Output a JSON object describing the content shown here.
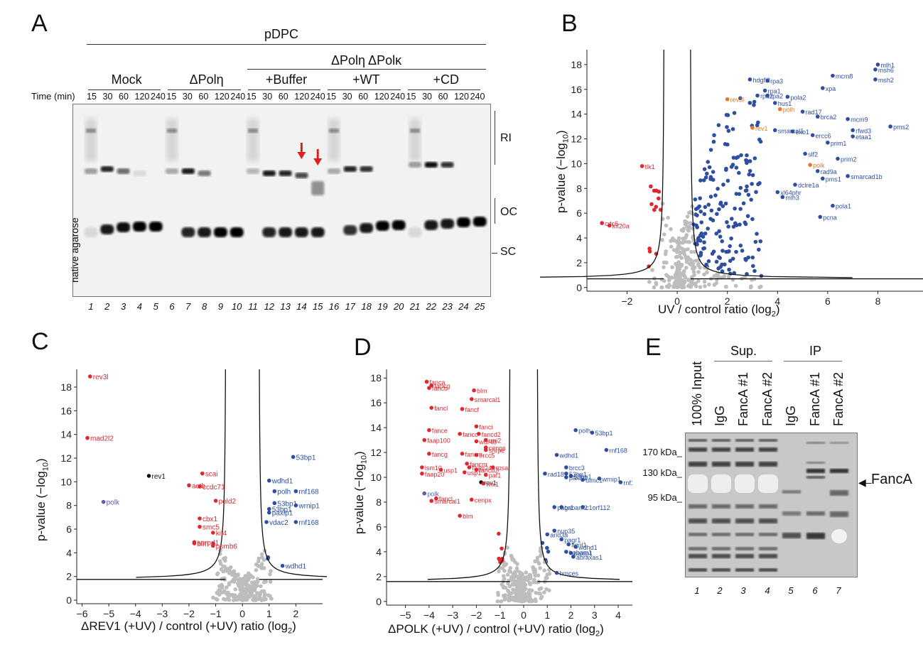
{
  "panelA": {
    "letter": "A",
    "top_header": "pDPC",
    "sub_header": "ΔPolη  ΔPolκ",
    "groups": [
      "Mock",
      "ΔPolη",
      "+Buffer",
      "+WT",
      "+CD"
    ],
    "time_label": "Time (min)",
    "times": [
      "15",
      "30",
      "60",
      "120",
      "240"
    ],
    "lanes": [
      "1",
      "2",
      "3",
      "4",
      "5",
      "6",
      "7",
      "8",
      "9",
      "10",
      "11",
      "12",
      "13",
      "14",
      "15",
      "16",
      "17",
      "18",
      "19",
      "20",
      "21",
      "22",
      "23",
      "24",
      "25"
    ],
    "side_label": "native agarose",
    "bands": [
      "RI",
      "OC",
      "SC"
    ],
    "arrow_color": "#e02020",
    "arrow_lanes": [
      "14",
      "15"
    ]
  },
  "panelB": {
    "letter": "B",
    "ylabel": "p-value (−log10)",
    "xlabel": "UV / control ratio (log2)",
    "xticks": [
      "−2",
      "0",
      "2",
      "4",
      "6",
      "8"
    ],
    "yticks": [
      "0",
      "2",
      "4",
      "6",
      "8",
      "10",
      "12",
      "14",
      "16",
      "18"
    ]
  },
  "panelC": {
    "letter": "C",
    "ylabel": "p-value (−log10)",
    "xlabel": "ΔREV1 (+UV) / control (+UV) ratio (log2)",
    "xticks": [
      "−6",
      "−5",
      "−4",
      "−3",
      "−2",
      "−1",
      "0",
      "1",
      "2"
    ],
    "yticks": [
      "0",
      "2",
      "4",
      "6",
      "8",
      "10",
      "12",
      "14",
      "16",
      "18"
    ]
  },
  "panelD": {
    "letter": "D",
    "ylabel": "p-value (−log10)",
    "xlabel": "ΔPOLK (+UV) / control (+UV) ratio (log2)",
    "xticks": [
      "−5",
      "−4",
      "−3",
      "−2",
      "−1",
      "0",
      "1",
      "2",
      "3",
      "4"
    ],
    "yticks": [
      "0",
      "2",
      "4",
      "6",
      "8",
      "10",
      "12",
      "14",
      "16",
      "18"
    ]
  },
  "panelE": {
    "letter": "E",
    "groups": [
      "Sup.",
      "IP"
    ],
    "columns": [
      "100% Input",
      "IgG",
      "FancA #1",
      "FancA #2",
      "IgG",
      "FancA #1",
      "FancA #2"
    ],
    "markers": [
      "170 kDa",
      "130 kDa",
      "95 kDa"
    ],
    "lanes": [
      "1",
      "2",
      "3",
      "4",
      "5",
      "6",
      "7"
    ],
    "arrow_label": "FancA"
  },
  "colors": {
    "up": "#2e4fa0",
    "down": "#e0262e",
    "ns": "#bdbdbd",
    "highlight_orange": "#e8762b",
    "polk_purple": "#5b5ea6",
    "black": "#111111"
  },
  "chart_data": [
    {
      "id": "B",
      "type": "scatter",
      "title": "",
      "xlabel": "UV / control ratio (log2)",
      "ylabel": "p-value (−log10)",
      "xlim": [
        -3.6,
        9.8
      ],
      "ylim": [
        -0.3,
        19.2
      ],
      "threshold": {
        "x_inner": 0.5,
        "y_floor": 0.7
      },
      "labeled_points": [
        {
          "label": "mlh1",
          "x": 8.0,
          "y": 18.0,
          "c": "up"
        },
        {
          "label": "msh6",
          "x": 7.9,
          "y": 17.6,
          "c": "up"
        },
        {
          "label": "msh2",
          "x": 7.9,
          "y": 16.8,
          "c": "up"
        },
        {
          "label": "mcm8",
          "x": 6.2,
          "y": 17.1,
          "c": "up"
        },
        {
          "label": "hdgfl2",
          "x": 2.9,
          "y": 16.8,
          "c": "up"
        },
        {
          "label": "rpa3",
          "x": 3.6,
          "y": 16.7,
          "c": "up"
        },
        {
          "label": "xpa",
          "x": 5.8,
          "y": 16.1,
          "c": "up"
        },
        {
          "label": "rpa2",
          "x": 3.2,
          "y": 15.5,
          "c": "up"
        },
        {
          "label": "rpa1",
          "x": 3.5,
          "y": 15.9,
          "c": "up"
        },
        {
          "label": "rpa2",
          "x": 3.6,
          "y": 15.5,
          "c": "up"
        },
        {
          "label": "pola2",
          "x": 4.4,
          "y": 15.4,
          "c": "up"
        },
        {
          "label": "hus1",
          "x": 3.9,
          "y": 14.9,
          "c": "up"
        },
        {
          "label": "rev3l",
          "x": 2.0,
          "y": 15.2,
          "c": "orange"
        },
        {
          "label": "polh",
          "x": 4.1,
          "y": 14.4,
          "c": "orange"
        },
        {
          "label": "rad17",
          "x": 5.0,
          "y": 14.2,
          "c": "up"
        },
        {
          "label": "brca2",
          "x": 5.6,
          "y": 13.8,
          "c": "up"
        },
        {
          "label": "mcm9",
          "x": 6.8,
          "y": 13.6,
          "c": "up"
        },
        {
          "label": "rev1",
          "x": 3.0,
          "y": 12.9,
          "c": "orange"
        },
        {
          "label": "smarcal1",
          "x": 3.9,
          "y": 12.7,
          "c": "up"
        },
        {
          "label": "exo1",
          "x": 4.6,
          "y": 12.6,
          "c": "up"
        },
        {
          "label": "ercc6",
          "x": 5.4,
          "y": 12.3,
          "c": "up"
        },
        {
          "label": "rfwd3",
          "x": 7.0,
          "y": 12.7,
          "c": "up"
        },
        {
          "label": "etaa1",
          "x": 7.0,
          "y": 12.2,
          "c": "up"
        },
        {
          "label": "prim1",
          "x": 6.0,
          "y": 11.7,
          "c": "up"
        },
        {
          "label": "pms2",
          "x": 8.5,
          "y": 13.0,
          "c": "up"
        },
        {
          "label": "slf2",
          "x": 5.1,
          "y": 10.8,
          "c": "up"
        },
        {
          "label": "prim2",
          "x": 6.4,
          "y": 10.4,
          "c": "up"
        },
        {
          "label": "polk",
          "x": 5.3,
          "y": 9.9,
          "c": "orange"
        },
        {
          "label": "rad9a",
          "x": 5.6,
          "y": 9.4,
          "c": "up"
        },
        {
          "label": "smarcad1b",
          "x": 6.8,
          "y": 9.0,
          "c": "up"
        },
        {
          "label": "pms1",
          "x": 5.8,
          "y": 8.8,
          "c": "up"
        },
        {
          "label": "dclre1a",
          "x": 4.7,
          "y": 8.3,
          "c": "up"
        },
        {
          "label": "xl64phr",
          "x": 4.0,
          "y": 7.7,
          "c": "up"
        },
        {
          "label": "mlh3",
          "x": 4.2,
          "y": 7.3,
          "c": "up"
        },
        {
          "label": "pola1",
          "x": 6.2,
          "y": 6.6,
          "c": "up"
        },
        {
          "label": "pcna",
          "x": 5.7,
          "y": 5.7,
          "c": "up"
        },
        {
          "label": "tlk1",
          "x": -1.4,
          "y": 9.8,
          "c": "down"
        },
        {
          "label": "cdc6",
          "x": -3.0,
          "y": 5.2,
          "c": "down"
        },
        {
          "label": "kif20a",
          "x": -2.7,
          "y": 5.0,
          "c": "down"
        }
      ]
    },
    {
      "id": "C",
      "type": "scatter",
      "title": "",
      "xlabel": "ΔREV1 (+UV) / control (+UV) ratio (log2)",
      "ylabel": "p-value (−log10)",
      "xlim": [
        -6.2,
        3.0
      ],
      "ylim": [
        -0.3,
        19.5
      ],
      "threshold": {
        "x_inner": 0.6,
        "y_floor": 1.75
      },
      "labeled_points": [
        {
          "label": "rev3l",
          "x": -5.7,
          "y": 18.9,
          "c": "down"
        },
        {
          "label": "mad2l2",
          "x": -5.8,
          "y": 13.7,
          "c": "down"
        },
        {
          "label": "rev1",
          "x": -3.5,
          "y": 10.5,
          "c": "black"
        },
        {
          "label": "polk",
          "x": -5.2,
          "y": 8.3,
          "c": "purple"
        },
        {
          "label": "scai",
          "x": -1.5,
          "y": 10.7,
          "c": "down"
        },
        {
          "label": "actb",
          "x": -2.0,
          "y": 9.7,
          "c": "down"
        },
        {
          "label": "ccdc71",
          "x": -1.6,
          "y": 9.6,
          "c": "down"
        },
        {
          "label": "pold2",
          "x": -1.0,
          "y": 8.4,
          "c": "down"
        },
        {
          "label": "cbx1",
          "x": -1.6,
          "y": 6.9,
          "c": "down"
        },
        {
          "label": "smc5",
          "x": -1.6,
          "y": 6.2,
          "c": "down"
        },
        {
          "label": "kif4",
          "x": -1.1,
          "y": 5.7,
          "c": "down"
        },
        {
          "label": "snrpd1",
          "x": -1.8,
          "y": 4.9,
          "c": "down"
        },
        {
          "label": "blm",
          "x": -1.8,
          "y": 4.8,
          "c": "down"
        },
        {
          "label": "psmb6",
          "x": -1.1,
          "y": 4.6,
          "c": "down"
        },
        {
          "label": "53bp1",
          "x": 1.9,
          "y": 12.1,
          "c": "up"
        },
        {
          "label": "wdhd1",
          "x": 1.0,
          "y": 10.1,
          "c": "up"
        },
        {
          "label": "polh",
          "x": 1.2,
          "y": 9.2,
          "c": "up"
        },
        {
          "label": "rnf168",
          "x": 2.0,
          "y": 9.2,
          "c": "up"
        },
        {
          "label": "53bp1",
          "x": 1.2,
          "y": 8.2,
          "c": "up"
        },
        {
          "label": "53bp1",
          "x": 1.0,
          "y": 7.7,
          "c": "up"
        },
        {
          "label": "wrnip1",
          "x": 2.0,
          "y": 8.0,
          "c": "up"
        },
        {
          "label": "paxip1",
          "x": 1.0,
          "y": 7.4,
          "c": "up"
        },
        {
          "label": "vdac2",
          "x": 0.9,
          "y": 6.6,
          "c": "up"
        },
        {
          "label": "rnf168",
          "x": 2.0,
          "y": 6.6,
          "c": "up"
        },
        {
          "label": "wdhd1",
          "x": 1.5,
          "y": 2.9,
          "c": "up"
        }
      ]
    },
    {
      "id": "D",
      "type": "scatter",
      "title": "",
      "xlabel": "ΔPOLK (+UV) / control (+UV) ratio (log2)",
      "ylabel": "p-value (−log10)",
      "xlim": [
        -5.8,
        4.6
      ],
      "ylim": [
        -0.3,
        18.7
      ],
      "threshold": {
        "x_inner": 0.55,
        "y_floor": 1.6
      },
      "labeled_points": [
        {
          "label": "fanca",
          "x": -4.1,
          "y": 17.7,
          "c": "down"
        },
        {
          "label": "fancg",
          "x": -3.9,
          "y": 17.4,
          "c": "down"
        },
        {
          "label": "fancb",
          "x": -4.0,
          "y": 17.2,
          "c": "down"
        },
        {
          "label": "blm",
          "x": -2.1,
          "y": 17.0,
          "c": "down"
        },
        {
          "label": "smarcal1",
          "x": -2.2,
          "y": 16.3,
          "c": "down"
        },
        {
          "label": "fancl",
          "x": -3.9,
          "y": 15.6,
          "c": "down"
        },
        {
          "label": "fancf",
          "x": -2.6,
          "y": 15.5,
          "c": "down"
        },
        {
          "label": "fance",
          "x": -4.0,
          "y": 13.8,
          "c": "down"
        },
        {
          "label": "fanci",
          "x": -2.0,
          "y": 14.1,
          "c": "down"
        },
        {
          "label": "fancc",
          "x": -2.7,
          "y": 13.5,
          "c": "down"
        },
        {
          "label": "fancd2",
          "x": -1.9,
          "y": 13.5,
          "c": "down"
        },
        {
          "label": "faap100",
          "x": -4.2,
          "y": 13.0,
          "c": "down"
        },
        {
          "label": "rmi2",
          "x": -1.6,
          "y": 13.0,
          "c": "down"
        },
        {
          "label": "wdr48",
          "x": -2.0,
          "y": 12.9,
          "c": "down"
        },
        {
          "label": "cenps",
          "x": -1.6,
          "y": 12.4,
          "c": "down"
        },
        {
          "label": "snrpe",
          "x": -1.6,
          "y": 12.2,
          "c": "down"
        },
        {
          "label": "fancg",
          "x": -4.0,
          "y": 11.9,
          "c": "down"
        },
        {
          "label": "fancm",
          "x": -2.6,
          "y": 11.9,
          "c": "down"
        },
        {
          "label": "ercc5",
          "x": -2.0,
          "y": 11.8,
          "c": "down"
        },
        {
          "label": "fancm",
          "x": -2.4,
          "y": 11.1,
          "c": "down"
        },
        {
          "label": "rpsa",
          "x": -1.3,
          "y": 10.8,
          "c": "down"
        },
        {
          "label": "lsm10",
          "x": -4.3,
          "y": 10.8,
          "c": "down"
        },
        {
          "label": "usp1",
          "x": -3.5,
          "y": 10.6,
          "c": "down"
        },
        {
          "label": "faap24",
          "x": -2.3,
          "y": 10.8,
          "c": "down"
        },
        {
          "label": "fancd2",
          "x": -2.0,
          "y": 10.6,
          "c": "down"
        },
        {
          "label": "usp1",
          "x": -2.5,
          "y": 10.4,
          "c": "down"
        },
        {
          "label": "paf1",
          "x": -1.6,
          "y": 10.2,
          "c": "down"
        },
        {
          "label": "faap20",
          "x": -4.3,
          "y": 10.3,
          "c": "down"
        },
        {
          "label": "rev1",
          "x": -1.8,
          "y": 9.6,
          "c": "black"
        },
        {
          "label": "rmi1",
          "x": -1.7,
          "y": 9.5,
          "c": "down"
        },
        {
          "label": "polk",
          "x": -4.2,
          "y": 8.7,
          "c": "purple"
        },
        {
          "label": "fancl",
          "x": -3.7,
          "y": 8.3,
          "c": "down"
        },
        {
          "label": "smarcal1",
          "x": -3.9,
          "y": 8.1,
          "c": "down"
        },
        {
          "label": "cenpx",
          "x": -2.2,
          "y": 8.2,
          "c": "down"
        },
        {
          "label": "blm",
          "x": -2.7,
          "y": 6.9,
          "c": "down"
        },
        {
          "label": "polh",
          "x": 2.2,
          "y": 13.8,
          "c": "up"
        },
        {
          "label": "53bp1",
          "x": 2.9,
          "y": 13.6,
          "c": "up"
        },
        {
          "label": "wdhd1",
          "x": 1.4,
          "y": 11.8,
          "c": "up"
        },
        {
          "label": "rnf168",
          "x": 3.5,
          "y": 12.2,
          "c": "up"
        },
        {
          "label": "brcc3",
          "x": 1.8,
          "y": 10.8,
          "c": "up"
        },
        {
          "label": "53bp1",
          "x": 1.8,
          "y": 10.3,
          "c": "up"
        },
        {
          "label": "rad18",
          "x": 0.9,
          "y": 10.3,
          "c": "up"
        },
        {
          "label": "53bp1",
          "x": 2.0,
          "y": 10.1,
          "c": "up"
        },
        {
          "label": "paxip1",
          "x": 1.8,
          "y": 10.0,
          "c": "up"
        },
        {
          "label": "wrnip1",
          "x": 3.2,
          "y": 9.9,
          "c": "up"
        },
        {
          "label": "uimc1",
          "x": 2.5,
          "y": 9.8,
          "c": "up"
        },
        {
          "label": "rnf168",
          "x": 4.1,
          "y": 9.6,
          "c": "up"
        },
        {
          "label": "babam2",
          "x": 1.6,
          "y": 7.6,
          "c": "up"
        },
        {
          "label": "pagr1",
          "x": 1.3,
          "y": 7.6,
          "c": "up"
        },
        {
          "label": "c1orf112",
          "x": 2.5,
          "y": 7.6,
          "c": "up"
        },
        {
          "label": "nup35",
          "x": 1.3,
          "y": 5.7,
          "c": "up"
        },
        {
          "label": "arid3a",
          "x": 1.0,
          "y": 5.4,
          "c": "up"
        },
        {
          "label": "pagr1",
          "x": 1.6,
          "y": 5.0,
          "c": "up"
        },
        {
          "label": "fignl1",
          "x": 1.9,
          "y": 4.6,
          "c": "up"
        },
        {
          "label": "wdhd1",
          "x": 2.2,
          "y": 4.4,
          "c": "up"
        },
        {
          "label": "babam1",
          "x": 1.8,
          "y": 4.0,
          "c": "up"
        },
        {
          "label": "paxip1",
          "x": 2.0,
          "y": 3.9,
          "c": "up"
        },
        {
          "label": "abraxas1",
          "x": 2.1,
          "y": 3.6,
          "c": "up"
        },
        {
          "label": "hmces",
          "x": 1.4,
          "y": 2.3,
          "c": "up"
        }
      ]
    }
  ]
}
